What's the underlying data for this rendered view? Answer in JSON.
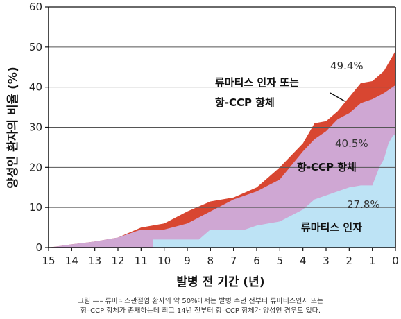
{
  "chart_data": {
    "type": "area",
    "xlabel": "발병 전 기간 (년)",
    "ylabel": "양성인 환자의 비율 (%)",
    "xlim": [
      15,
      0
    ],
    "ylim": [
      0,
      60
    ],
    "x_ticks": [
      "15",
      "14",
      "13",
      "12",
      "11",
      "10",
      "9",
      "8",
      "7",
      "6",
      "5",
      "4",
      "3",
      "2",
      "1",
      "0"
    ],
    "y_ticks": [
      "0",
      "10",
      "20",
      "30",
      "40",
      "50",
      "60"
    ],
    "colors": {
      "rf": "#bde3f5",
      "anti_ccp": "#cfa7d3",
      "either": "#d84631"
    },
    "series": [
      {
        "name": "류마티스 인자",
        "x": [
          10.5,
          10.5,
          8.5,
          8,
          6.5,
          6,
          5,
          4,
          3.5,
          2.5,
          2,
          1.5,
          1,
          0.9,
          0.7,
          0.5,
          0.3,
          0.1,
          0
        ],
        "values": [
          0,
          2,
          2,
          4.5,
          4.5,
          5.5,
          6.5,
          9.5,
          12,
          14,
          15,
          15.5,
          15.5,
          17,
          20,
          22,
          26,
          28,
          28
        ]
      },
      {
        "name": "항-CCP 항체",
        "x": [
          15,
          14,
          13,
          12,
          11,
          10,
          9,
          8,
          7,
          6,
          5,
          4,
          3.5,
          3,
          2.5,
          2,
          1.5,
          1,
          0.5,
          0
        ],
        "values": [
          0,
          0.8,
          1.5,
          2.5,
          4.5,
          4.5,
          6,
          9,
          12,
          14,
          17,
          24,
          27,
          29,
          32,
          33.5,
          36,
          37,
          38.5,
          40.5
        ]
      },
      {
        "name": "류마티스 인자 또는 항-CCP 항체",
        "x": [
          15,
          14,
          13,
          12,
          11,
          10,
          9,
          8,
          7,
          6,
          5,
          4,
          3.5,
          3,
          2.5,
          2,
          1.5,
          1,
          0.5,
          0
        ],
        "values": [
          0,
          0.8,
          1.5,
          2.5,
          5,
          6,
          9,
          11.5,
          12.5,
          15,
          20,
          26,
          31,
          31.5,
          34,
          37.5,
          41,
          41.5,
          44,
          49
        ]
      }
    ],
    "annotations": {
      "either_line1": "류마티스 인자 또는",
      "either_line2": "항-CCP 항체",
      "either_pct": "49.4%",
      "ccp_label": "항-CCP 항체",
      "ccp_pct": "40.5%",
      "rf_label": "류마티스 인자",
      "rf_pct": "27.8%"
    }
  },
  "caption": {
    "line1": "그림 ––– 류마티스관절염 환자의 약 50%에서는 발병 수년 전부터 류마티스인자 또는",
    "line2": "항–CCP 항체가 존재하는데 최고 14년 전부터 항–CCP 항체가 양성인 경우도 있다."
  }
}
